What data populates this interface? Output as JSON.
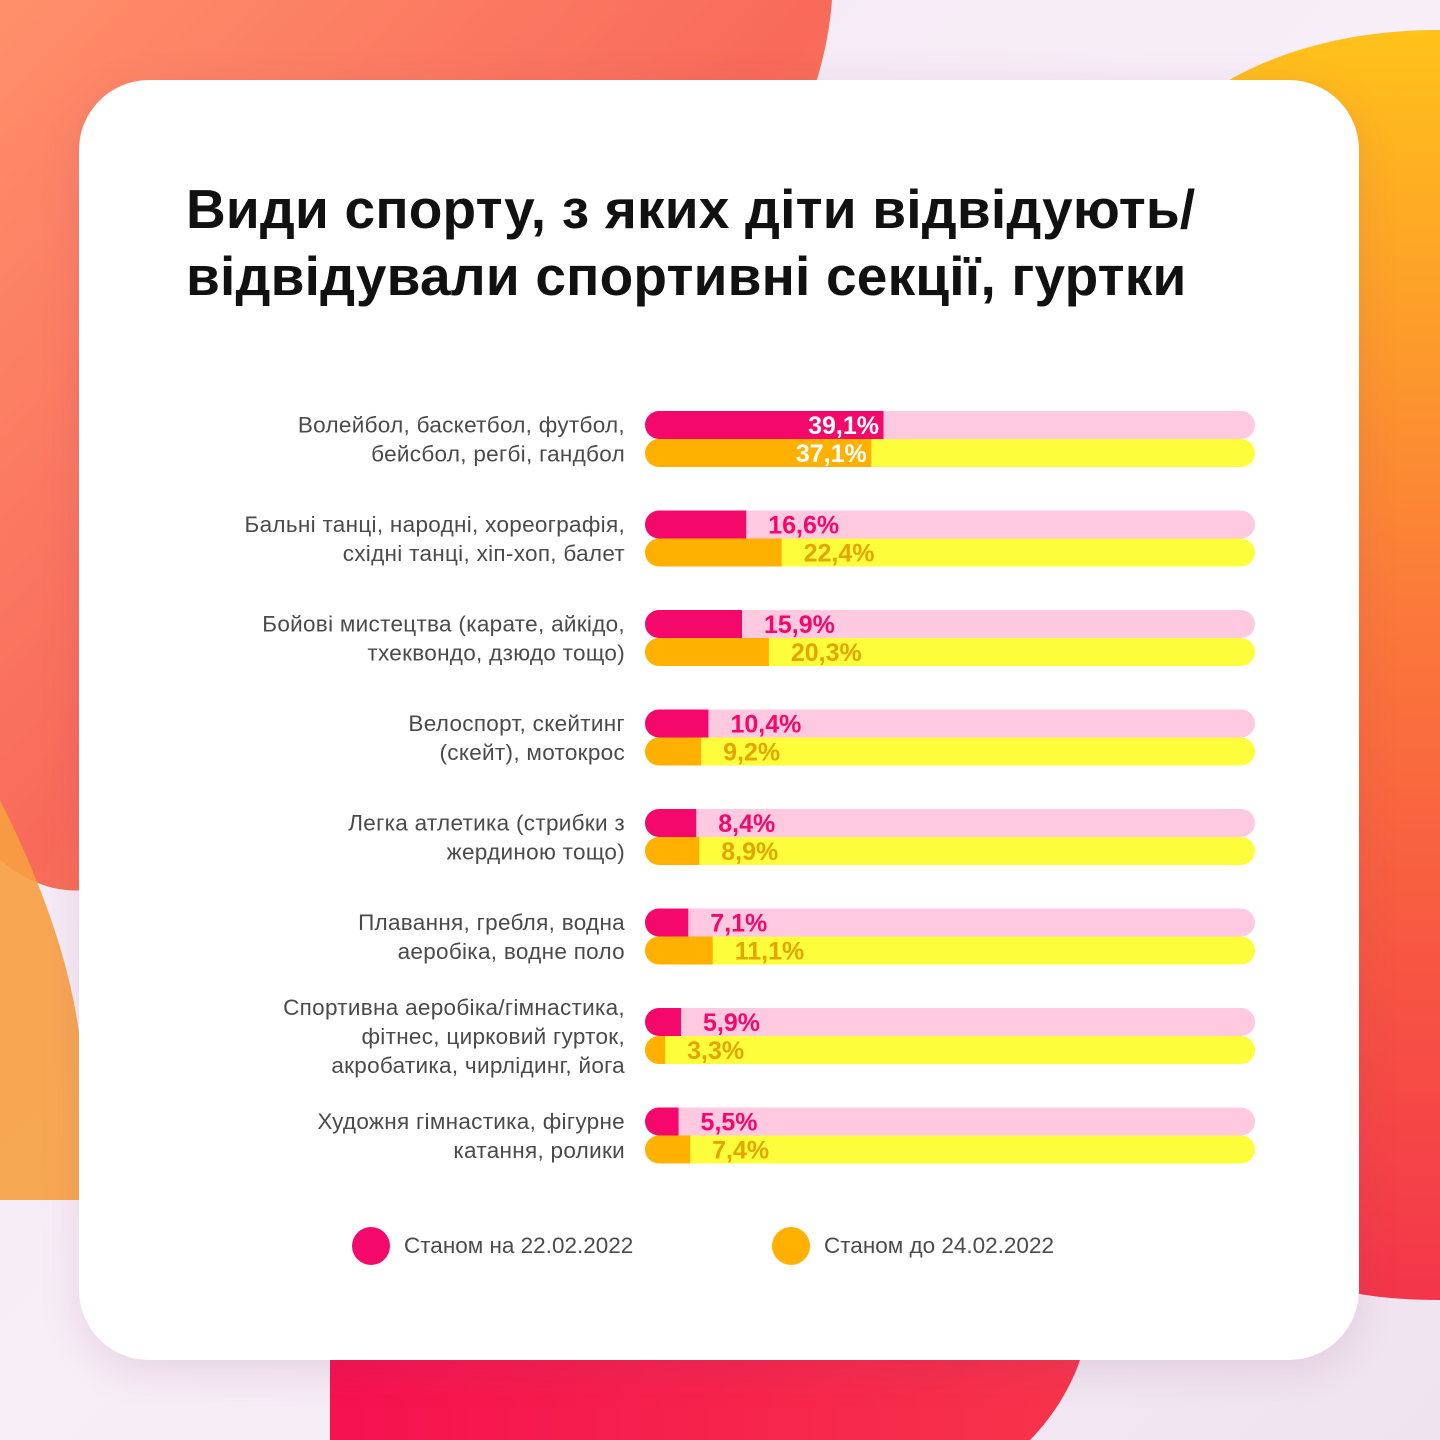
{
  "title": "Види спорту, з яких діти відвідують/відвідували спортивні секції, гуртки",
  "colors": {
    "primary": "#f5086b",
    "primary_track": "#ffc9df",
    "primary_text": "#f5086b",
    "secondary": "#ffb000",
    "secondary_track": "#fdfd3c",
    "secondary_text": "#e5a500",
    "inside_text": "#ffffff"
  },
  "chart_data": {
    "type": "bar",
    "orientation": "horizontal",
    "xlim": [
      0,
      100
    ],
    "categories": [
      [
        "Волейбол, баскетбол, футбол,",
        "бейсбол, регбі, гандбол"
      ],
      [
        "Бальні танці, народні, хореографія,",
        "східні танці, хіп-хоп, балет"
      ],
      [
        "Бойові мистецтва (карате, айкідо,",
        "тхеквондо, дзюдо тощо)"
      ],
      [
        "Велоспорт, скейтинг",
        "(скейт), мотокрос"
      ],
      [
        "Легка атлетика (стрибки з",
        "жердиною тощо)"
      ],
      [
        "Плавання, гребля, водна",
        "аеробіка, водне поло"
      ],
      [
        "Спортивна аеробіка/гімнастика,",
        "фітнес, цирковий гурток,",
        "акробатика, чирлідинг, йога"
      ],
      [
        "Художня гімнастика, фігурне",
        "катання, ролики"
      ]
    ],
    "series": [
      {
        "name": "Станом на 22.02.2022",
        "values": [
          39.1,
          16.6,
          15.9,
          10.4,
          8.4,
          7.1,
          5.9,
          5.5
        ],
        "labels": [
          "39,1%",
          "16,6%",
          "15,9%",
          "10,4%",
          "8,4%",
          "7,1%",
          "5,9%",
          "5,5%"
        ]
      },
      {
        "name": "Станом до 24.02.2022",
        "values": [
          37.1,
          22.4,
          20.3,
          9.2,
          8.9,
          11.1,
          3.3,
          7.4
        ],
        "labels": [
          "37,1%",
          "22,4%",
          "20,3%",
          "9,2%",
          "8,9%",
          "11,1%",
          "3,3%",
          "7,4%"
        ]
      }
    ],
    "legend_position": "bottom"
  }
}
